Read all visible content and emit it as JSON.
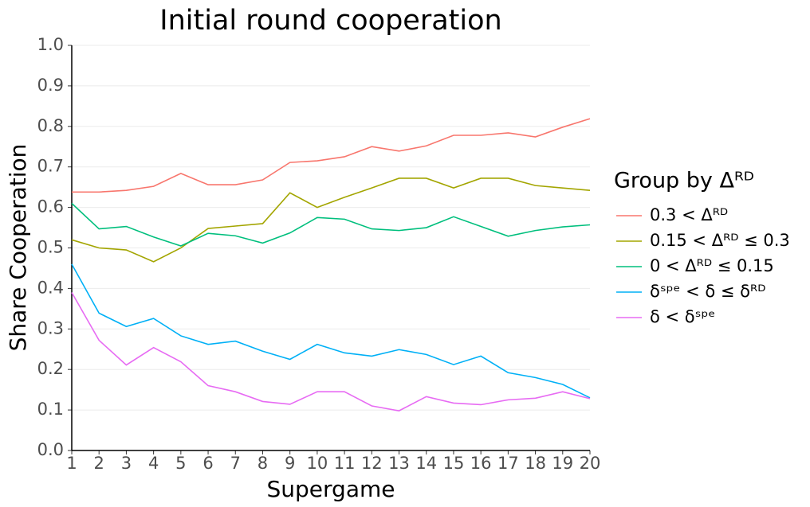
{
  "chart_data": {
    "type": "line",
    "title": "Initial round cooperation",
    "x_label": "Supergame",
    "y_label": "Share Cooperation",
    "legend_title": "Group by Δᴿᴰ",
    "legend_position": "right",
    "grid": true,
    "x": [
      1,
      2,
      3,
      4,
      5,
      6,
      7,
      8,
      9,
      10,
      11,
      12,
      13,
      14,
      15,
      16,
      17,
      18,
      19,
      20
    ],
    "xlim": [
      1,
      20
    ],
    "xticks": [
      1,
      2,
      3,
      4,
      5,
      6,
      7,
      8,
      9,
      10,
      11,
      12,
      13,
      14,
      15,
      16,
      17,
      18,
      19,
      20
    ],
    "ylim": [
      0,
      1
    ],
    "yticks": [
      {
        "value": 0,
        "label": "0.0"
      },
      0.1,
      0.2,
      0.3,
      0.4,
      0.5,
      0.6,
      0.7,
      0.8,
      0.9,
      {
        "value": 1,
        "label": "1.0"
      }
    ],
    "series": [
      {
        "name": "0.3 < Δᴿᴰ",
        "color": "#F8766D",
        "values": [
          0.638,
          0.638,
          0.642,
          0.652,
          0.684,
          0.656,
          0.656,
          0.668,
          0.711,
          0.715,
          0.725,
          0.75,
          0.739,
          0.752,
          0.778,
          0.778,
          0.784,
          0.774,
          0.798,
          0.819
        ]
      },
      {
        "name": "0.15 < Δᴿᴰ ≤ 0.3",
        "color": "#A3A500",
        "values": [
          0.52,
          0.5,
          0.495,
          0.466,
          0.5,
          0.548,
          0.554,
          0.56,
          0.636,
          0.6,
          0.625,
          0.648,
          0.672,
          0.672,
          0.648,
          0.672,
          0.672,
          0.654,
          0.648,
          0.642
        ]
      },
      {
        "name": "0 < Δᴿᴰ ≤ 0.15",
        "color": "#00BF7D",
        "values": [
          0.61,
          0.547,
          0.553,
          0.527,
          0.505,
          0.536,
          0.53,
          0.512,
          0.537,
          0.575,
          0.571,
          0.547,
          0.543,
          0.55,
          0.577,
          0.553,
          0.529,
          0.543,
          0.552,
          0.557
        ]
      },
      {
        "name": "δˢᵖᵉ < δ ≤ δᴿᴰ",
        "color": "#00B0F6",
        "values": [
          0.46,
          0.339,
          0.306,
          0.326,
          0.283,
          0.262,
          0.27,
          0.245,
          0.225,
          0.262,
          0.241,
          0.233,
          0.249,
          0.237,
          0.212,
          0.233,
          0.192,
          0.18,
          0.163,
          0.13
        ]
      },
      {
        "name": "δ < δˢᵖᵉ",
        "color": "#E76BF3",
        "values": [
          0.39,
          0.272,
          0.211,
          0.254,
          0.219,
          0.16,
          0.145,
          0.121,
          0.114,
          0.145,
          0.145,
          0.11,
          0.098,
          0.133,
          0.117,
          0.113,
          0.125,
          0.129,
          0.145,
          0.128
        ]
      }
    ]
  }
}
